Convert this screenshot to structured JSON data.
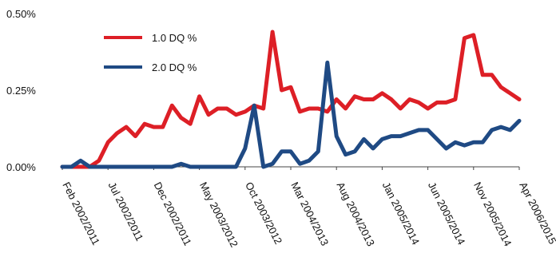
{
  "chart_data": {
    "type": "line",
    "title": "",
    "xlabel": "",
    "ylabel": "",
    "ylim": [
      0,
      0.5
    ],
    "y_ticks": [
      "0.00%",
      "0.25%",
      "0.50%"
    ],
    "y_tick_values": [
      0,
      0.25,
      0.5
    ],
    "x_tick_labels": [
      "Feb 2002/2011",
      "Jul 2002/2011",
      "Dec 2002/2011",
      "May 2003/2012",
      "Oct 2003/2012",
      "Mar 2004/2013",
      "Aug 2004/2013",
      "Jan 2005/2014",
      "Jun 2005/2014",
      "Nov 2005/2014",
      "Apr 2006/2015"
    ],
    "x_tick_positions": [
      0,
      5,
      10,
      15,
      20,
      25,
      30,
      35,
      40,
      45,
      50
    ],
    "legend_position": "top-left",
    "grid": false,
    "series": [
      {
        "name": "1.0 DQ %",
        "color": "#dd1f26",
        "values": [
          0.0,
          0.0,
          0.0,
          0.0,
          0.02,
          0.08,
          0.11,
          0.13,
          0.1,
          0.14,
          0.13,
          0.13,
          0.2,
          0.16,
          0.14,
          0.23,
          0.17,
          0.19,
          0.19,
          0.17,
          0.18,
          0.2,
          0.19,
          0.44,
          0.25,
          0.26,
          0.18,
          0.19,
          0.19,
          0.18,
          0.22,
          0.19,
          0.23,
          0.22,
          0.22,
          0.24,
          0.22,
          0.19,
          0.22,
          0.21,
          0.19,
          0.21,
          0.21,
          0.22,
          0.42,
          0.43,
          0.3,
          0.3,
          0.26,
          0.24,
          0.22
        ]
      },
      {
        "name": "2.0 DQ %",
        "color": "#1f4a84",
        "values": [
          0.0,
          0.0,
          0.02,
          0.0,
          0.0,
          0.0,
          0.0,
          0.0,
          0.0,
          0.0,
          0.0,
          0.0,
          0.0,
          0.01,
          0.0,
          0.0,
          0.0,
          0.0,
          0.0,
          0.0,
          0.06,
          0.2,
          0.0,
          0.01,
          0.05,
          0.05,
          0.01,
          0.02,
          0.05,
          0.34,
          0.1,
          0.04,
          0.05,
          0.09,
          0.06,
          0.09,
          0.1,
          0.1,
          0.11,
          0.12,
          0.12,
          0.09,
          0.06,
          0.08,
          0.07,
          0.08,
          0.08,
          0.12,
          0.13,
          0.12,
          0.15
        ]
      }
    ]
  }
}
